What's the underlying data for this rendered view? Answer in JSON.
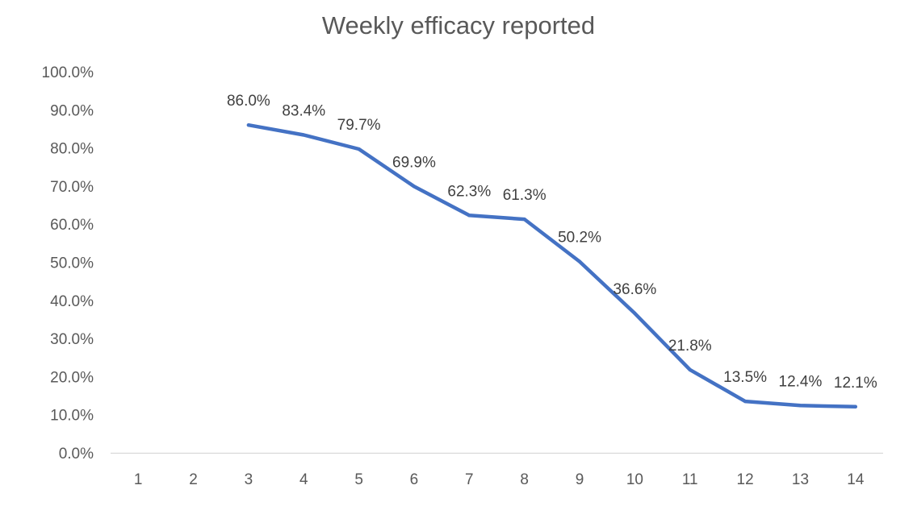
{
  "chart_data": {
    "type": "line",
    "title": "Weekly efficacy reported",
    "xlabel": "",
    "ylabel": "",
    "categories": [
      "1",
      "2",
      "3",
      "4",
      "5",
      "6",
      "7",
      "8",
      "9",
      "10",
      "11",
      "12",
      "13",
      "14"
    ],
    "series": [
      {
        "values": [
          null,
          null,
          86.0,
          83.4,
          79.7,
          69.9,
          62.3,
          61.3,
          50.2,
          36.6,
          21.8,
          13.5,
          12.4,
          12.1
        ],
        "labels": [
          "",
          "",
          "86.0%",
          "83.4%",
          "79.7%",
          "69.9%",
          "62.3%",
          "61.3%",
          "50.2%",
          "36.6%",
          "21.8%",
          "13.5%",
          "12.4%",
          "12.1%"
        ],
        "color": "#4472C4"
      }
    ],
    "ylim": [
      0,
      100
    ],
    "yticks": [
      "0.0%",
      "10.0%",
      "20.0%",
      "30.0%",
      "40.0%",
      "50.0%",
      "60.0%",
      "70.0%",
      "80.0%",
      "90.0%",
      "100.0%"
    ],
    "grid": false,
    "legend": "none"
  }
}
